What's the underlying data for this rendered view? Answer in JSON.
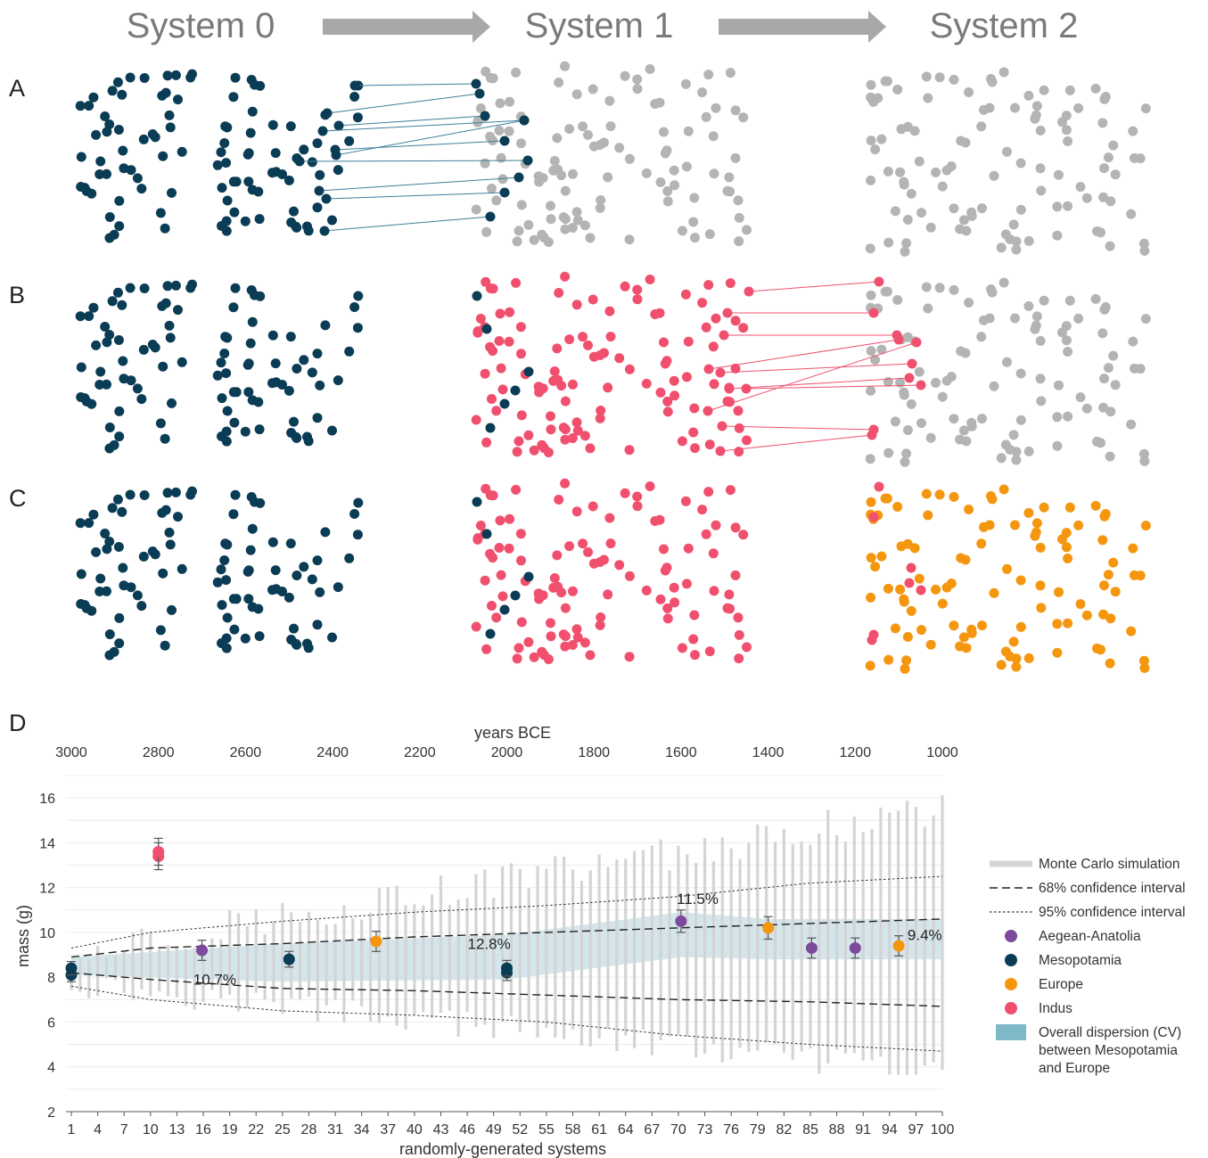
{
  "header": {
    "system0": "System 0",
    "system1": "System 1",
    "system2": "System 2"
  },
  "panels": {
    "a": "A",
    "b": "B",
    "c": "C",
    "d": "D"
  },
  "colors": {
    "mesopotamia": "#0b3c55",
    "indus": "#f0506e",
    "europe": "#f5960f",
    "aegean": "#7b4a9b",
    "grey": "#b4b4b4",
    "dispersion": "#cfe3ea",
    "mc": "#d4d4d4"
  },
  "chart_data": {
    "type": "scatter",
    "ylabel": "mass (g)",
    "x_top_label": "years BCE",
    "x_bottom_label": "randomly-generated systems",
    "ylim": [
      2,
      17
    ],
    "yticks": [
      2,
      4,
      6,
      8,
      10,
      12,
      14,
      16
    ],
    "xlim_years": [
      3000,
      1000
    ],
    "years_ticks": [
      3000,
      2800,
      2600,
      2400,
      2200,
      2000,
      1800,
      1600,
      1400,
      1200,
      1000
    ],
    "system_ticks": [
      1,
      4,
      7,
      10,
      13,
      16,
      19,
      22,
      25,
      28,
      31,
      34,
      37,
      40,
      43,
      46,
      49,
      52,
      55,
      58,
      61,
      64,
      67,
      70,
      73,
      76,
      79,
      82,
      85,
      88,
      91,
      94,
      97,
      100
    ],
    "system_range": [
      1,
      100
    ],
    "monte_carlo": {
      "systems": 100,
      "low_start": 7.7,
      "low_end": 3.7,
      "high_start": 9.2,
      "high_end": 15.5
    },
    "ci68_upper": [
      [
        1,
        8.9
      ],
      [
        10,
        9.3
      ],
      [
        25,
        9.5
      ],
      [
        40,
        9.8
      ],
      [
        55,
        10.0
      ],
      [
        70,
        10.2
      ],
      [
        85,
        10.4
      ],
      [
        100,
        10.6
      ]
    ],
    "ci68_lower": [
      [
        1,
        8.2
      ],
      [
        10,
        7.9
      ],
      [
        25,
        7.5
      ],
      [
        40,
        7.4
      ],
      [
        55,
        7.2
      ],
      [
        70,
        7.0
      ],
      [
        85,
        6.9
      ],
      [
        100,
        6.7
      ]
    ],
    "ci95_upper": [
      [
        1,
        9.3
      ],
      [
        10,
        10.0
      ],
      [
        25,
        10.5
      ],
      [
        40,
        10.9
      ],
      [
        55,
        11.2
      ],
      [
        70,
        11.6
      ],
      [
        85,
        12.2
      ],
      [
        100,
        12.5
      ]
    ],
    "ci95_lower": [
      [
        1,
        7.6
      ],
      [
        10,
        7.0
      ],
      [
        25,
        6.5
      ],
      [
        40,
        6.3
      ],
      [
        55,
        6.0
      ],
      [
        70,
        5.4
      ],
      [
        85,
        5.0
      ],
      [
        100,
        4.7
      ]
    ],
    "dispersion_band": [
      [
        3000,
        8.1,
        8.9
      ],
      [
        2520,
        7.8,
        9.5
      ],
      [
        2000,
        7.9,
        9.9
      ],
      [
        1600,
        8.9,
        10.9
      ],
      [
        1400,
        8.8,
        10.6
      ],
      [
        1000,
        8.8,
        10.6
      ]
    ],
    "cv_annotations": [
      {
        "label": "10.7%",
        "year": 2720,
        "y": 7.9
      },
      {
        "label": "12.8%",
        "year": 2090,
        "y": 9.5
      },
      {
        "label": "11.5%",
        "year": 1610,
        "y": 11.5
      },
      {
        "label": "9.4%",
        "year": 1080,
        "y": 9.9
      }
    ],
    "series": [
      {
        "name": "Aegean-Anatolia",
        "color": "#7b4a9b",
        "points": [
          [
            2700,
            9.2,
            0.45
          ],
          [
            1600,
            10.5,
            0.5
          ],
          [
            1300,
            9.3,
            0.45
          ],
          [
            1200,
            9.3,
            0.45
          ]
        ]
      },
      {
        "name": "Mesopotamia",
        "color": "#0b3c55",
        "points": [
          [
            3000,
            8.1,
            0.3
          ],
          [
            3000,
            8.4,
            0.3
          ],
          [
            2500,
            8.8,
            0.35
          ],
          [
            2000,
            8.2,
            0.35
          ],
          [
            2000,
            8.4,
            0.35
          ]
        ]
      },
      {
        "name": "Europe",
        "color": "#f5960f",
        "points": [
          [
            2300,
            9.6,
            0.45
          ],
          [
            1400,
            10.2,
            0.5
          ],
          [
            1100,
            9.4,
            0.45
          ]
        ]
      },
      {
        "name": "Indus",
        "color": "#f0506e",
        "points": [
          [
            2800,
            13.4,
            0.6
          ],
          [
            2800,
            13.6,
            0.6
          ]
        ]
      }
    ],
    "legend": [
      {
        "label": "Monte Carlo simulation",
        "kind": "mc"
      },
      {
        "label": "68% confidence interval",
        "kind": "dash"
      },
      {
        "label": "95% confidence interval",
        "kind": "dot"
      },
      {
        "label": "Aegean-Anatolia",
        "kind": "dot-aegean"
      },
      {
        "label": "Mesopotamia",
        "kind": "dot-meso"
      },
      {
        "label": "Europe",
        "kind": "dot-europe"
      },
      {
        "label": "Indus",
        "kind": "dot-indus"
      },
      {
        "label": "Overall dispersion (CV) between Mesopotamia and Europe",
        "lines": [
          "Overall dispersion (CV)",
          "between Mesopotamia",
          "and Europe"
        ],
        "kind": "band"
      }
    ]
  }
}
